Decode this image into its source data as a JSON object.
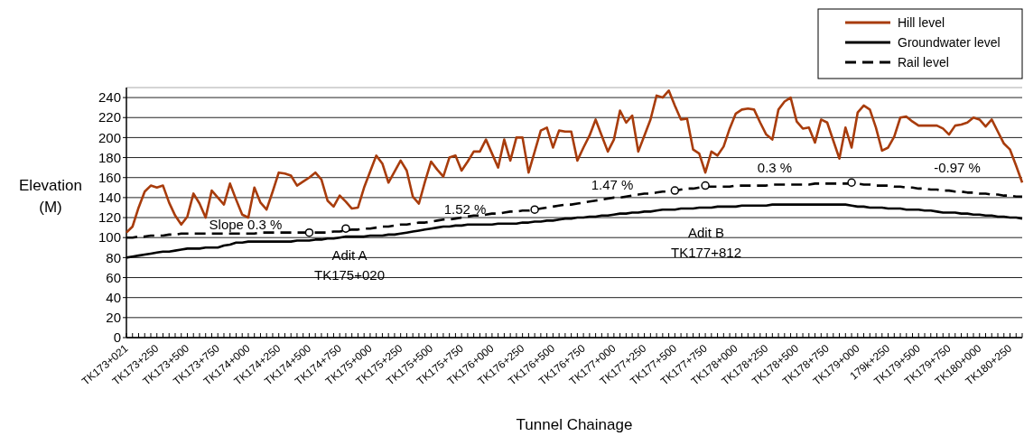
{
  "chart_data": {
    "type": "line",
    "xlabel": "Tunnel Chainage",
    "ylabel": "Elevation\n(M)",
    "ylim": [
      0,
      250
    ],
    "yticks": [
      0,
      20,
      40,
      60,
      80,
      100,
      120,
      140,
      160,
      180,
      200,
      220,
      240
    ],
    "categories": [
      "TK173+021",
      null,
      null,
      null,
      null,
      "TK173+250",
      null,
      null,
      null,
      null,
      "TK173+500",
      null,
      null,
      null,
      null,
      "TK173+750",
      null,
      null,
      null,
      null,
      "TK174+000",
      null,
      null,
      null,
      null,
      "TK174+250",
      null,
      null,
      null,
      null,
      "TK174+500",
      null,
      null,
      null,
      null,
      "TK174+750",
      null,
      null,
      null,
      null,
      "TK175+000",
      null,
      null,
      null,
      null,
      "TK175+250",
      null,
      null,
      null,
      null,
      "TK175+500",
      null,
      null,
      null,
      null,
      "TK175+750",
      null,
      null,
      null,
      null,
      "TK176+000",
      null,
      null,
      null,
      null,
      "TK176+250",
      null,
      null,
      null,
      null,
      "TK176+500",
      null,
      null,
      null,
      null,
      "TK176+750",
      null,
      null,
      null,
      null,
      "TK177+000",
      null,
      null,
      null,
      null,
      "TK177+250",
      null,
      null,
      null,
      null,
      "TK177+500",
      null,
      null,
      null,
      null,
      "TK177+750",
      null,
      null,
      null,
      null,
      "TK178+000",
      null,
      null,
      null,
      null,
      "TK178+250",
      null,
      null,
      null,
      null,
      "TK178+500",
      null,
      null,
      null,
      null,
      "TK178+750",
      null,
      null,
      null,
      null,
      "TK179+000",
      null,
      null,
      null,
      null,
      "179k+250",
      null,
      null,
      null,
      null,
      "TK179+500",
      null,
      null,
      null,
      null,
      "TK179+750",
      null,
      null,
      null,
      null,
      "TK180+000",
      null,
      null,
      null,
      null,
      "TK180+250",
      null,
      null
    ],
    "grid": "y",
    "legend": "top right",
    "marker": "none",
    "series": [
      {
        "name": "Hill level",
        "color": "#a83c0c",
        "line_style": "solid",
        "values": [
          105,
          111,
          130,
          146,
          152,
          150,
          152,
          135,
          122,
          113,
          121,
          144,
          134,
          120,
          147,
          140,
          133,
          154,
          138,
          123,
          120,
          150,
          135,
          128,
          146,
          165,
          164,
          162,
          152,
          156,
          160,
          165,
          158,
          137,
          131,
          142,
          136,
          129,
          130,
          150,
          166,
          182,
          174,
          155,
          166,
          177,
          167,
          141,
          134,
          156,
          176,
          168,
          161,
          180,
          182,
          167,
          176,
          186,
          186,
          198,
          184,
          170,
          198,
          177,
          200,
          200,
          165,
          186,
          207,
          210,
          190,
          207,
          206,
          206,
          177,
          190,
          202,
          218,
          202,
          186,
          198,
          227,
          215,
          222,
          186,
          202,
          218,
          242,
          240,
          247,
          232,
          218,
          219,
          188,
          184,
          165,
          186,
          182,
          191,
          209,
          224,
          228,
          229,
          228,
          215,
          203,
          198,
          228,
          236,
          240,
          216,
          209,
          210,
          195,
          218,
          215,
          197,
          179,
          210,
          190,
          225,
          232,
          228,
          210,
          187,
          190,
          201,
          220,
          221,
          216,
          212,
          212,
          212,
          212,
          209,
          203,
          212,
          213,
          215,
          220,
          218,
          211,
          218,
          206,
          194,
          188,
          172,
          155
        ]
      },
      {
        "name": "Groundwater level",
        "color": "#000000",
        "line_style": "solid",
        "values": [
          80,
          81,
          82,
          83,
          84,
          85,
          86,
          86,
          87,
          88,
          89,
          89,
          89,
          90,
          90,
          90,
          92,
          93,
          95,
          95,
          96,
          96,
          96,
          96,
          96,
          96,
          96,
          96,
          97,
          97,
          97,
          98,
          98,
          99,
          99,
          100,
          101,
          101,
          101,
          101,
          102,
          102,
          102,
          103,
          103,
          104,
          105,
          106,
          107,
          108,
          109,
          110,
          111,
          111,
          112,
          112,
          113,
          113,
          113,
          113,
          113,
          114,
          114,
          114,
          114,
          115,
          115,
          116,
          116,
          117,
          117,
          118,
          119,
          119,
          120,
          120,
          121,
          121,
          122,
          122,
          123,
          124,
          124,
          125,
          125,
          126,
          126,
          127,
          128,
          128,
          128,
          129,
          129,
          129,
          130,
          130,
          130,
          131,
          131,
          131,
          131,
          132,
          132,
          132,
          132,
          132,
          133,
          133,
          133,
          133,
          133,
          133,
          133,
          133,
          133,
          133,
          133,
          133,
          133,
          132,
          131,
          131,
          130,
          130,
          130,
          129,
          129,
          129,
          128,
          128,
          128,
          127,
          127,
          126,
          125,
          125,
          125,
          124,
          124,
          123,
          123,
          122,
          122,
          121,
          121,
          120,
          120,
          119
        ]
      },
      {
        "name": "Rail level",
        "color": "#000000",
        "line_style": "dashed",
        "values": [
          100,
          100,
          101,
          101,
          102,
          102,
          102,
          103,
          103,
          104,
          104,
          104,
          104,
          104,
          104,
          104,
          104,
          104,
          104,
          104,
          104,
          104,
          105,
          105,
          105,
          105,
          105,
          105,
          105,
          105,
          105,
          105,
          105,
          105,
          106,
          106,
          107,
          108,
          108,
          109,
          109,
          110,
          111,
          111,
          112,
          113,
          113,
          114,
          115,
          115,
          116,
          117,
          118,
          118,
          119,
          120,
          121,
          122,
          122,
          123,
          124,
          124,
          125,
          126,
          126,
          127,
          127,
          128,
          129,
          130,
          131,
          132,
          133,
          133,
          134,
          135,
          136,
          137,
          138,
          139,
          140,
          140,
          141,
          142,
          143,
          144,
          144,
          145,
          146,
          146,
          147,
          148,
          149,
          149,
          150,
          151,
          151,
          151,
          151,
          151,
          152,
          152,
          152,
          152,
          152,
          152,
          153,
          153,
          153,
          153,
          153,
          153,
          153,
          154,
          154,
          154,
          154,
          154,
          154,
          154,
          154,
          153,
          153,
          152,
          152,
          152,
          151,
          151,
          150,
          150,
          149,
          149,
          148,
          148,
          147,
          147,
          146,
          146,
          145,
          145,
          144,
          144,
          143,
          143,
          142,
          142,
          141,
          141
        ]
      },
      {
        "type": "scatter",
        "color": "#000000",
        "marker": "circle",
        "values": [
          null,
          null,
          null,
          null,
          null,
          null,
          null,
          null,
          null,
          null,
          null,
          null,
          null,
          null,
          null,
          null,
          null,
          null,
          null,
          null,
          null,
          null,
          null,
          null,
          null,
          null,
          null,
          null,
          null,
          null,
          105,
          null,
          null,
          null,
          null,
          null,
          109,
          null,
          null,
          null,
          null,
          null,
          null,
          null,
          null,
          null,
          null,
          null,
          null,
          null,
          null,
          null,
          null,
          null,
          null,
          null,
          null,
          null,
          null,
          null,
          null,
          null,
          null,
          null,
          null,
          null,
          null,
          128,
          null,
          null,
          null,
          null,
          null,
          null,
          null,
          null,
          null,
          null,
          null,
          null,
          null,
          null,
          null,
          null,
          null,
          null,
          null,
          null,
          null,
          null,
          147,
          null,
          null,
          null,
          null,
          152,
          null,
          null,
          null,
          null,
          null,
          null,
          null,
          null,
          null,
          null,
          null,
          null,
          null,
          null,
          null,
          null,
          null,
          null,
          null,
          null,
          null,
          null,
          null,
          155,
          null,
          null,
          null,
          null,
          null,
          null,
          null,
          null,
          null,
          null,
          null,
          null,
          null,
          null,
          null,
          null,
          null,
          null,
          null,
          null,
          null,
          null,
          null,
          null,
          null,
          null,
          null,
          null
        ]
      }
    ],
    "annotations": [
      "Slope 0.3 %",
      "Adit A",
      "TK175+020",
      "1.52 %",
      "1.47 %",
      "Adit B",
      "TK177+812",
      "0.3 %",
      "-0.97 %"
    ]
  }
}
